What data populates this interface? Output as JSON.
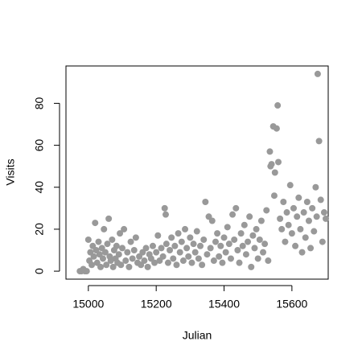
{
  "chart_data": {
    "type": "scatter",
    "xlabel": "Julian",
    "ylabel": "Visits",
    "color": "#999999",
    "xlim": [
      14934,
      15707
    ],
    "ylim": [
      -3.8,
      97.8
    ],
    "xticks": [
      15000,
      15200,
      15400,
      15600
    ],
    "yticks": [
      0,
      20,
      40,
      60,
      80
    ],
    "x": [
      14975,
      14980,
      14985,
      14990,
      14995,
      15000,
      15003,
      15006,
      15010,
      15013,
      15016,
      15020,
      15023,
      15026,
      15030,
      15033,
      15036,
      15040,
      15043,
      15046,
      15050,
      15053,
      15056,
      15060,
      15063,
      15066,
      15070,
      15073,
      15076,
      15080,
      15083,
      15086,
      15090,
      15093,
      15096,
      15100,
      15105,
      15110,
      15115,
      15120,
      15125,
      15130,
      15135,
      15140,
      15145,
      15150,
      15155,
      15160,
      15165,
      15170,
      15175,
      15180,
      15185,
      15190,
      15195,
      15200,
      15205,
      15210,
      15215,
      15220,
      15225,
      15228,
      15230,
      15235,
      15240,
      15245,
      15250,
      15255,
      15260,
      15265,
      15270,
      15275,
      15280,
      15285,
      15290,
      15295,
      15300,
      15305,
      15310,
      15315,
      15320,
      15325,
      15330,
      15335,
      15340,
      15345,
      15350,
      15355,
      15360,
      15365,
      15370,
      15375,
      15380,
      15385,
      15390,
      15395,
      15400,
      15405,
      15410,
      15415,
      15420,
      15425,
      15430,
      15435,
      15440,
      15445,
      15450,
      15455,
      15460,
      15465,
      15470,
      15475,
      15480,
      15485,
      15490,
      15495,
      15500,
      15505,
      15510,
      15515,
      15520,
      15525,
      15530,
      15535,
      15537,
      15540,
      15545,
      15548,
      15550,
      15555,
      15558,
      15560,
      15565,
      15570,
      15575,
      15580,
      15585,
      15590,
      15595,
      15600,
      15605,
      15610,
      15615,
      15620,
      15625,
      15630,
      15635,
      15640,
      15645,
      15650,
      15655,
      15660,
      15665,
      15670,
      15673,
      15676,
      15680,
      15685,
      15690,
      15695,
      15700
    ],
    "y": [
      0,
      0,
      1,
      0,
      0,
      15,
      5,
      9,
      3,
      12,
      7,
      23,
      10,
      4,
      14,
      8,
      2,
      11,
      6,
      20,
      9,
      3,
      13,
      25,
      7,
      5,
      15,
      2,
      10,
      6,
      12,
      4,
      8,
      18,
      3,
      11,
      20,
      5,
      9,
      2,
      14,
      6,
      10,
      16,
      4,
      7,
      3,
      9,
      5,
      11,
      2,
      8,
      6,
      12,
      4,
      9,
      17,
      5,
      11,
      7,
      30,
      27,
      13,
      4,
      10,
      16,
      6,
      12,
      3,
      18,
      9,
      14,
      5,
      20,
      11,
      7,
      16,
      4,
      13,
      9,
      19,
      6,
      12,
      3,
      15,
      33,
      8,
      26,
      11,
      24,
      5,
      14,
      18,
      7,
      12,
      4,
      16,
      9,
      21,
      13,
      6,
      27,
      15,
      30,
      10,
      4,
      18,
      12,
      22,
      8,
      14,
      26,
      2,
      17,
      11,
      20,
      6,
      15,
      24,
      9,
      13,
      29,
      5,
      57,
      50,
      51,
      69,
      36,
      47,
      68,
      79,
      52,
      25,
      20,
      33,
      14,
      28,
      22,
      41,
      18,
      30,
      12,
      26,
      35,
      20,
      9,
      28,
      16,
      33,
      24,
      11,
      30,
      19,
      40,
      26,
      94,
      62,
      34,
      14,
      28,
      25
    ]
  }
}
